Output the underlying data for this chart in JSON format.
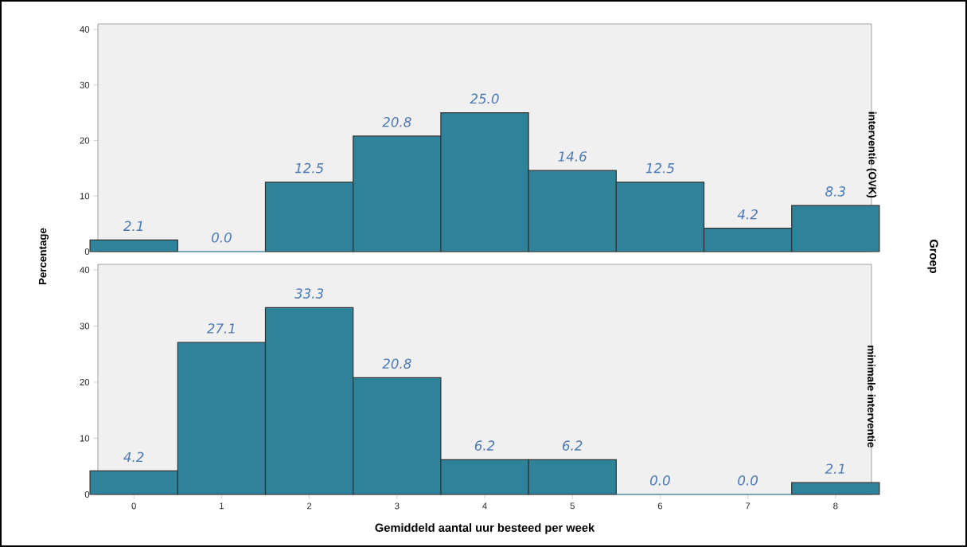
{
  "chart_data": [
    {
      "type": "bar",
      "title": "interventie (OVK)",
      "ylabel": "Percentage",
      "categories": [
        "0",
        "1",
        "2",
        "3",
        "4",
        "5",
        "6",
        "7",
        "8"
      ],
      "values": [
        2.1,
        0.0,
        12.5,
        20.8,
        25.0,
        14.6,
        12.5,
        4.2,
        8.3
      ],
      "value_labels": [
        "2.1",
        "0.0",
        "12.5",
        "20.8",
        "25.0",
        "14.6",
        "12.5",
        "4.2",
        "8.3"
      ],
      "color": "#2e8299",
      "ylim": [
        0,
        41
      ],
      "yticks": [
        0,
        10,
        20,
        30,
        40
      ],
      "tick_labels": "y"
    },
    {
      "type": "bar",
      "title": "minimale interventie",
      "xlabel": "Gemiddeld aantal uur besteed per week",
      "annotations": [
        "Groep"
      ],
      "categories": [
        "0",
        "1",
        "2",
        "3",
        "4",
        "5",
        "6",
        "7",
        "8"
      ],
      "values": [
        4.2,
        27.1,
        33.3,
        20.8,
        6.2,
        6.2,
        0.0,
        0.0,
        2.1
      ],
      "value_labels": [
        "4.2",
        "27.1",
        "33.3",
        "20.8",
        "6.2",
        "6.2",
        "0.0",
        "0.0",
        "2.1"
      ],
      "color": "#2e8299",
      "ylim": [
        0,
        41
      ],
      "yticks": [
        0,
        10,
        20,
        30,
        40
      ]
    }
  ]
}
